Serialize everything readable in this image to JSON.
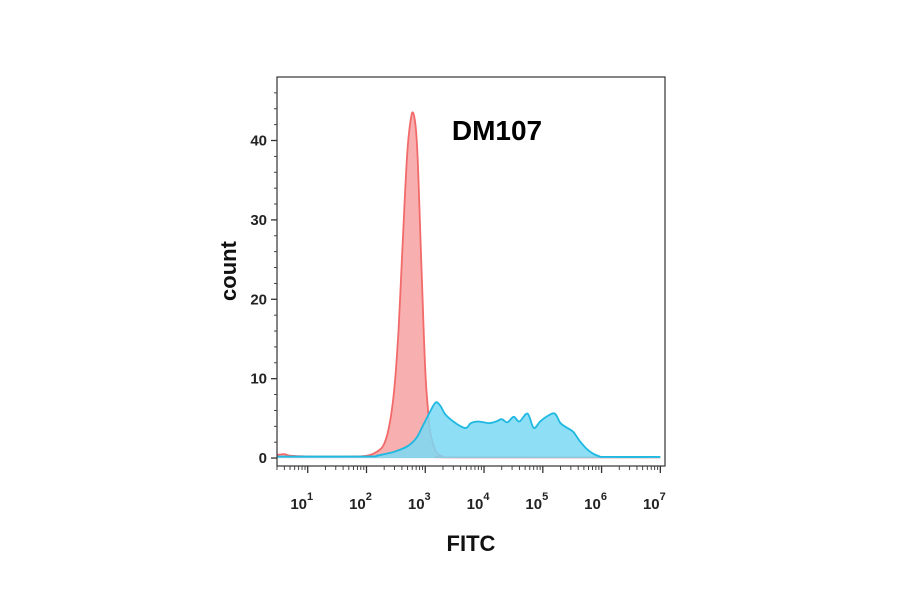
{
  "chart_data": {
    "type": "area",
    "title": "DM107",
    "xlabel": "FITC",
    "ylabel": "count",
    "xscale": "log",
    "xlim": [
      3,
      12000000
    ],
    "ylim": [
      -1,
      48
    ],
    "grid": false,
    "x_ticks": [
      {
        "base": "10",
        "exp": "1",
        "value": 10
      },
      {
        "base": "10",
        "exp": "2",
        "value": 100
      },
      {
        "base": "10",
        "exp": "3",
        "value": 1000
      },
      {
        "base": "10",
        "exp": "4",
        "value": 10000
      },
      {
        "base": "10",
        "exp": "5",
        "value": 100000
      },
      {
        "base": "10",
        "exp": "6",
        "value": 1000000
      },
      {
        "base": "10",
        "exp": "7",
        "value": 10000000
      }
    ],
    "y_ticks": [
      {
        "label": "0",
        "value": 0
      },
      {
        "label": "10",
        "value": 10
      },
      {
        "label": "20",
        "value": 20
      },
      {
        "label": "30",
        "value": 30
      },
      {
        "label": "40",
        "value": 40
      }
    ],
    "series": [
      {
        "color": "#f26a6a",
        "fill": "#f7a1a1",
        "points": [
          [
            3,
            0.4
          ],
          [
            4,
            0.5
          ],
          [
            5,
            0.3
          ],
          [
            10,
            0.2
          ],
          [
            50,
            0.2
          ],
          [
            100,
            0.3
          ],
          [
            150,
            0.8
          ],
          [
            200,
            1.8
          ],
          [
            250,
            4.5
          ],
          [
            300,
            9
          ],
          [
            350,
            16
          ],
          [
            400,
            25
          ],
          [
            450,
            33
          ],
          [
            500,
            39
          ],
          [
            550,
            42
          ],
          [
            600,
            43.5
          ],
          [
            650,
            43
          ],
          [
            700,
            41
          ],
          [
            750,
            37
          ],
          [
            800,
            31
          ],
          [
            900,
            20
          ],
          [
            1000,
            11
          ],
          [
            1100,
            6.5
          ],
          [
            1200,
            3.5
          ],
          [
            1400,
            1.5
          ],
          [
            1600,
            0.6
          ],
          [
            2000,
            0.2
          ],
          [
            3000,
            0.1
          ],
          [
            10000000,
            0.1
          ]
        ]
      },
      {
        "color": "#1fb8e0",
        "fill": "#7ad9f5",
        "points": [
          [
            3,
            0.2
          ],
          [
            100,
            0.2
          ],
          [
            150,
            0.3
          ],
          [
            200,
            0.5
          ],
          [
            300,
            0.8
          ],
          [
            500,
            1.5
          ],
          [
            700,
            2.5
          ],
          [
            900,
            4
          ],
          [
            1200,
            5.8
          ],
          [
            1500,
            7
          ],
          [
            1800,
            6.6
          ],
          [
            2200,
            5.5
          ],
          [
            3000,
            4.6
          ],
          [
            4000,
            4
          ],
          [
            5000,
            3.8
          ],
          [
            6000,
            4.4
          ],
          [
            8000,
            4.6
          ],
          [
            12000,
            4.4
          ],
          [
            16000,
            4.6
          ],
          [
            20000,
            4.9
          ],
          [
            25000,
            4.5
          ],
          [
            32000,
            5.2
          ],
          [
            40000,
            4.6
          ],
          [
            55000,
            5.6
          ],
          [
            70000,
            3.8
          ],
          [
            90000,
            4.6
          ],
          [
            120000,
            5.3
          ],
          [
            160000,
            5.6
          ],
          [
            200000,
            4.4
          ],
          [
            260000,
            3.8
          ],
          [
            330000,
            3.3
          ],
          [
            420000,
            2.2
          ],
          [
            550000,
            1.2
          ],
          [
            700000,
            0.6
          ],
          [
            900000,
            0.25
          ],
          [
            1200000,
            0.15
          ],
          [
            10000000,
            0.15
          ]
        ]
      }
    ]
  }
}
